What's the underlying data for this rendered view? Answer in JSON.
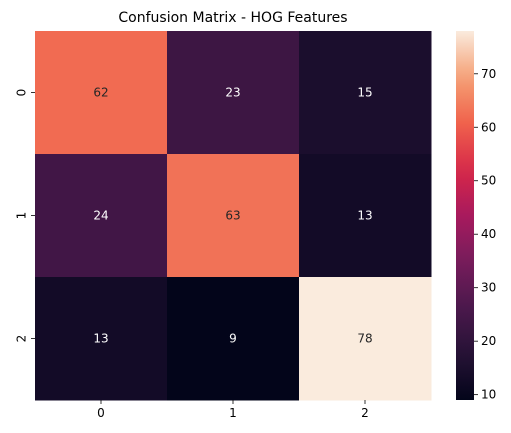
{
  "chart_data": {
    "type": "heatmap",
    "title": "Confusion Matrix - HOG Features",
    "xlabel": "",
    "ylabel": "",
    "x_categories": [
      "0",
      "1",
      "2"
    ],
    "y_categories": [
      "0",
      "1",
      "2"
    ],
    "values": [
      [
        62,
        23,
        15
      ],
      [
        24,
        63,
        13
      ],
      [
        13,
        9,
        78
      ]
    ],
    "colorbar": {
      "min": 9,
      "max": 78,
      "ticks": [
        10,
        20,
        30,
        40,
        50,
        60,
        70
      ],
      "tick_labels": [
        "10",
        "20",
        "30",
        "40",
        "50",
        "60",
        "70"
      ]
    },
    "colormap": "rocket",
    "annotation_colors": {
      "light": "#ffffff",
      "dark": "#262626"
    }
  }
}
